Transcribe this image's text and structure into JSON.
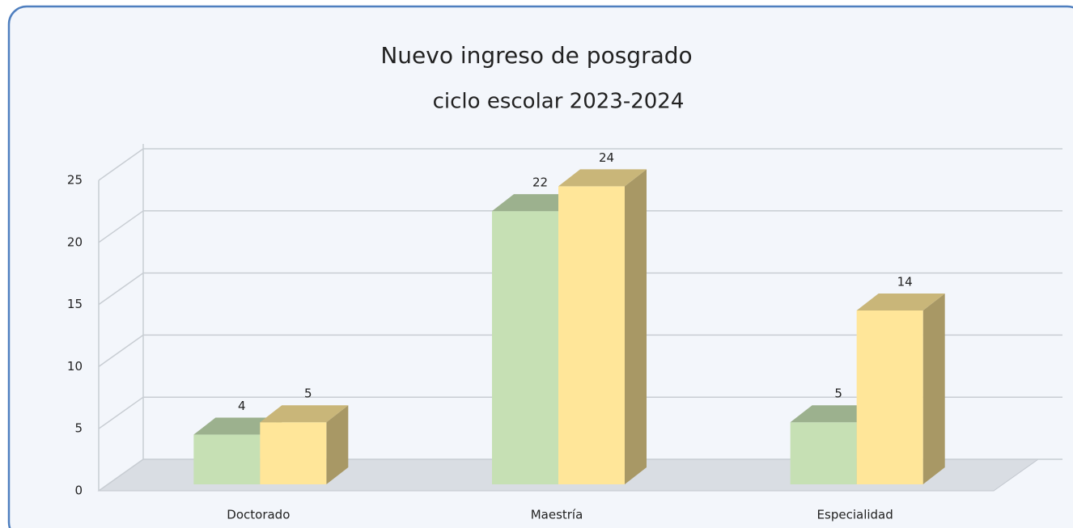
{
  "chart_data": {
    "type": "bar3d",
    "title": "Nuevo ingreso de posgrado",
    "subtitle": "ciclo escolar 2023-2024",
    "categories": [
      "Doctorado",
      "Maestría",
      "Especialidad"
    ],
    "series": [
      {
        "color": "#c6e0b4",
        "values": [
          4,
          22,
          5
        ]
      },
      {
        "color": "#ffe699",
        "values": [
          5,
          24,
          14
        ]
      }
    ],
    "ylim": [
      0,
      25
    ],
    "yticks": [
      0,
      5,
      10,
      15,
      20,
      25
    ],
    "grid": true
  }
}
